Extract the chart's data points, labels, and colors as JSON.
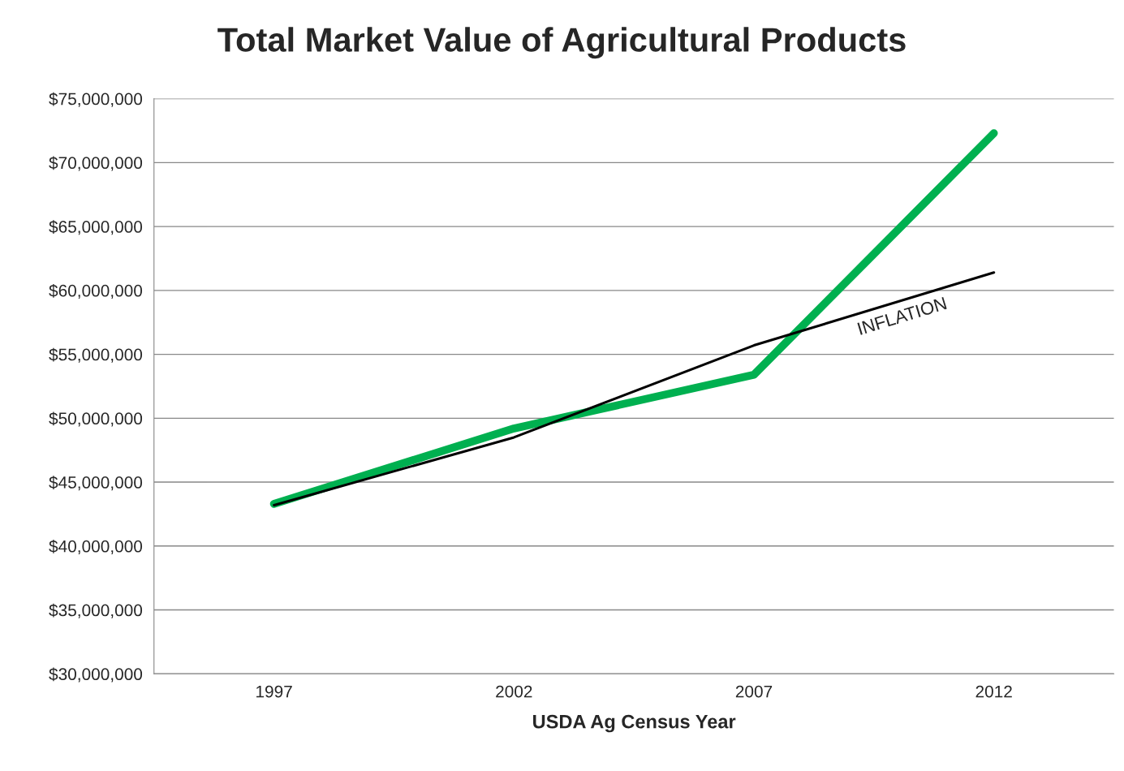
{
  "chart_data": {
    "type": "line",
    "title": "Total Market Value of Agricultural Products",
    "xlabel": "USDA Ag Census Year",
    "categories": [
      "1997",
      "2002",
      "2007",
      "2012"
    ],
    "series": [
      {
        "color": "#00b050",
        "values": [
          43300000,
          49200000,
          53400000,
          72300000
        ]
      },
      {
        "name": "INFLATION",
        "color": "#000000",
        "values": [
          43200000,
          48500000,
          55700000,
          61400000
        ]
      }
    ],
    "ylim": [
      30000000,
      75000000
    ],
    "yticks": [
      {
        "value": 30000000,
        "label": "$30,000,000"
      },
      {
        "value": 35000000,
        "label": "$35,000,000"
      },
      {
        "value": 40000000,
        "label": "$40,000,000"
      },
      {
        "value": 45000000,
        "label": "$45,000,000"
      },
      {
        "value": 50000000,
        "label": "$50,000,000"
      },
      {
        "value": 55000000,
        "label": "$55,000,000"
      },
      {
        "value": 60000000,
        "label": "$60,000,000"
      },
      {
        "value": 65000000,
        "label": "$65,000,000"
      },
      {
        "value": 70000000,
        "label": "$70,000,000"
      },
      {
        "value": 75000000,
        "label": "$75,000,000"
      }
    ],
    "grid": "y",
    "legend": false,
    "marker": "none",
    "line_style": "solid"
  }
}
